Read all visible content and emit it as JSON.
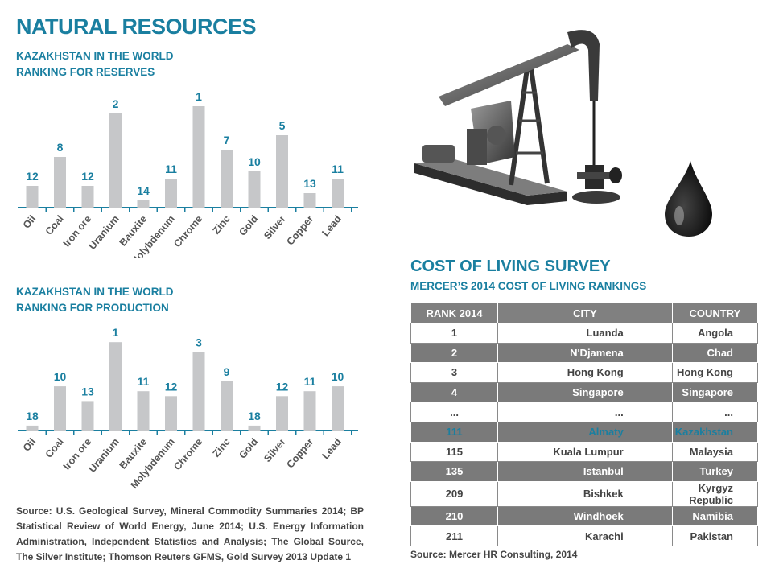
{
  "header": {
    "title": "NATURAL RESOURCES"
  },
  "reserves_heading": [
    "KAZAKHSTAN IN THE WORLD",
    "RANKING FOR RESERVES"
  ],
  "production_heading": [
    "KAZAKHSTAN IN THE WORLD",
    "RANKING FOR PRODUCTION"
  ],
  "chart_data": [
    {
      "type": "bar",
      "title": "KAZAKHSTAN IN THE WORLD RANKING FOR RESERVES",
      "categories": [
        "Oil",
        "Coal",
        "Iron ore",
        "Uranium",
        "Bauxite",
        "Molybdenum",
        "Chrome",
        "Zinc",
        "Gold",
        "Silver",
        "Copper",
        "Lead"
      ],
      "values": [
        12,
        8,
        12,
        2,
        14,
        11,
        1,
        7,
        10,
        5,
        13,
        11
      ],
      "value_meaning": "world rank (shorter bar = lower rank)",
      "grid": false,
      "color": "#c6c7c9",
      "label_color": "#1a7fa0"
    },
    {
      "type": "bar",
      "title": "KAZAKHSTAN IN THE WORLD RANKING FOR PRODUCTION",
      "categories": [
        "Oil",
        "Coal",
        "Iron ore",
        "Uranium",
        "Bauxite",
        "Molybdenum",
        "Chrome",
        "Zinc",
        "Gold",
        "Silver",
        "Copper",
        "Lead"
      ],
      "values": [
        18,
        10,
        13,
        1,
        11,
        12,
        3,
        9,
        18,
        12,
        11,
        10
      ],
      "value_meaning": "world rank (shorter bar = lower rank)",
      "grid": false,
      "color": "#c6c7c9",
      "label_color": "#1a7fa0"
    }
  ],
  "sources": {
    "left": "Source: U.S. Geological Survey, Mineral Commodity Summaries 2014; BP Statistical Review of World Energy, June 2014; U.S. Energy Information Administration, Independent Statistics and Analysis; The Global Source, The Silver Institute; Thomson Reuters GFMS, Gold Survey 2013 Update 1",
    "right": "Source: Mercer HR Consulting, 2014"
  },
  "cost_of_living": {
    "title": "COST OF LIVING SURVEY",
    "subtitle": "MERCER’S 2014 COST OF LIVING RANKINGS",
    "headers": [
      "RANK 2014",
      "CITY",
      "COUNTRY"
    ],
    "rows": [
      {
        "rank": "1",
        "city": "Luanda",
        "country": "Angola",
        "style": "light"
      },
      {
        "rank": "2",
        "city": "N'Djamena",
        "country": "Chad",
        "style": "dark"
      },
      {
        "rank": "3",
        "city": "Hong Kong",
        "country": "Hong Kong",
        "style": "light"
      },
      {
        "rank": "4",
        "city": "Singapore",
        "country": "Singapore",
        "style": "dark"
      },
      {
        "rank": "...",
        "city": "...",
        "country": "...",
        "style": "light"
      },
      {
        "rank": "111",
        "city": "Almaty",
        "country": "Kazakhstan",
        "style": "highlight"
      },
      {
        "rank": "115",
        "city": "Kuala Lumpur",
        "country": "Malaysia",
        "style": "light"
      },
      {
        "rank": "135",
        "city": "Istanbul",
        "country": "Turkey",
        "style": "dark"
      },
      {
        "rank": "209",
        "city": "Bishkek",
        "country": "Kyrgyz Republic",
        "style": "light"
      },
      {
        "rank": "210",
        "city": "Windhoek",
        "country": "Namibia",
        "style": "dark"
      },
      {
        "rank": "211",
        "city": "Karachi",
        "country": "Pakistan",
        "style": "light"
      }
    ]
  },
  "illustrations": {
    "pump": "oil-pumpjack-icon",
    "drop": "oil-drop-icon"
  }
}
